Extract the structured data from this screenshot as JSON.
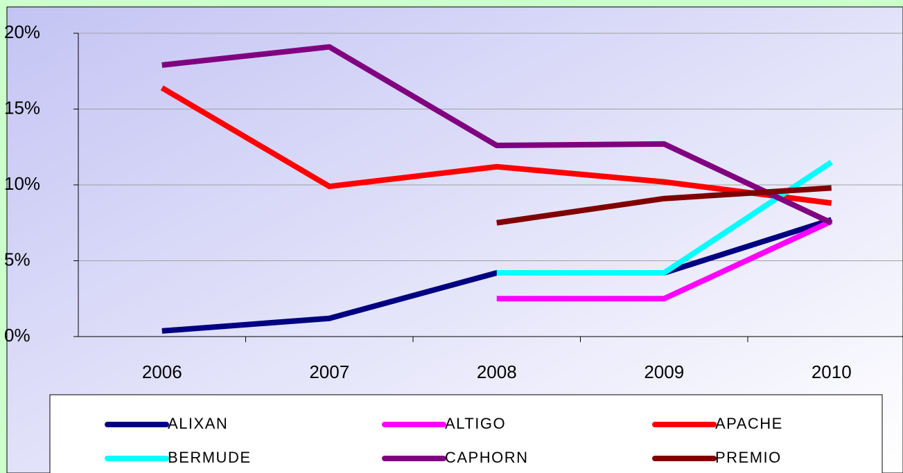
{
  "chart_data": {
    "type": "line",
    "categories": [
      "2006",
      "2007",
      "2008",
      "2009",
      "2010"
    ],
    "series": [
      {
        "name": "ALIXAN",
        "color": "#000080",
        "values": [
          0.37,
          1.2,
          4.2,
          4.2,
          7.7
        ]
      },
      {
        "name": "ALTIGO",
        "color": "#ff00ff",
        "values": [
          null,
          null,
          2.5,
          2.5,
          7.6
        ]
      },
      {
        "name": "APACHE",
        "color": "#ff0000",
        "values": [
          16.4,
          9.9,
          11.2,
          10.2,
          8.8
        ]
      },
      {
        "name": "BERMUDE",
        "color": "#00ffff",
        "values": [
          null,
          null,
          4.2,
          4.2,
          11.5
        ]
      },
      {
        "name": "CAPHORN",
        "color": "#800080",
        "values": [
          17.9,
          19.1,
          12.6,
          12.7,
          7.5
        ]
      },
      {
        "name": "PREMIO",
        "color": "#800000",
        "values": [
          null,
          null,
          7.5,
          9.1,
          9.8
        ]
      }
    ],
    "ylim": [
      0,
      20
    ],
    "yticks": [
      {
        "value": 0,
        "label": "0%"
      },
      {
        "value": 5,
        "label": "5%"
      },
      {
        "value": 10,
        "label": "10%"
      },
      {
        "value": 15,
        "label": "15%"
      },
      {
        "value": 20,
        "label": "20%"
      }
    ],
    "grid": true,
    "legend": "bottom"
  }
}
